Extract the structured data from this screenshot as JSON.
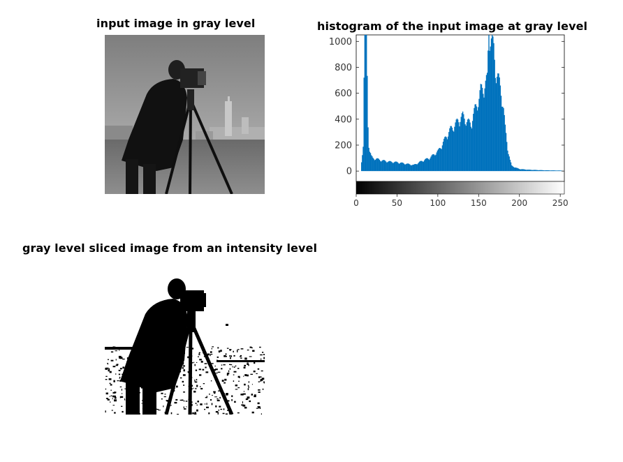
{
  "figure": {
    "titles": {
      "input": "input image in gray level",
      "histogram": "histogram of the input image at gray level",
      "sliced": "gray level sliced image from an intensity level"
    }
  },
  "chart_data": [
    {
      "type": "image",
      "title": "input image in gray level",
      "content": "grayscale photograph: man standing behind a camera on a tripod, buildings and sky in background"
    },
    {
      "type": "bar",
      "title": "histogram of the input image at gray level",
      "xlabel": "",
      "ylabel": "",
      "xlim": [
        0,
        255
      ],
      "ylim": [
        -80,
        1050
      ],
      "xticks": [
        0,
        50,
        100,
        150,
        200,
        250
      ],
      "yticks": [
        0,
        200,
        400,
        600,
        800,
        1000
      ],
      "colorbar": "gray",
      "bar_color": "#0072BD",
      "bin_x": [
        0,
        5,
        8,
        9,
        10,
        11,
        12,
        13,
        14,
        15,
        16,
        18,
        20,
        25,
        30,
        40,
        50,
        60,
        70,
        80,
        90,
        100,
        105,
        110,
        115,
        120,
        125,
        130,
        135,
        140,
        145,
        150,
        152,
        155,
        158,
        160,
        162,
        165,
        168,
        170,
        172,
        175,
        178,
        180,
        182,
        185,
        188,
        190,
        195,
        200,
        210,
        220,
        230,
        240,
        250,
        255
      ],
      "values": [
        0,
        0,
        200,
        700,
        1050,
        1050,
        1050,
        700,
        350,
        200,
        150,
        110,
        95,
        90,
        80,
        70,
        65,
        55,
        45,
        75,
        100,
        150,
        200,
        260,
        310,
        340,
        380,
        410,
        370,
        350,
        460,
        540,
        600,
        620,
        650,
        680,
        1050,
        980,
        900,
        760,
        720,
        650,
        560,
        460,
        320,
        170,
        80,
        40,
        25,
        15,
        10,
        8,
        6,
        5,
        4,
        0
      ]
    },
    {
      "type": "image",
      "title": "gray level sliced image from an intensity level",
      "content": "binary thresholded version of the input photograph in black and white"
    }
  ]
}
